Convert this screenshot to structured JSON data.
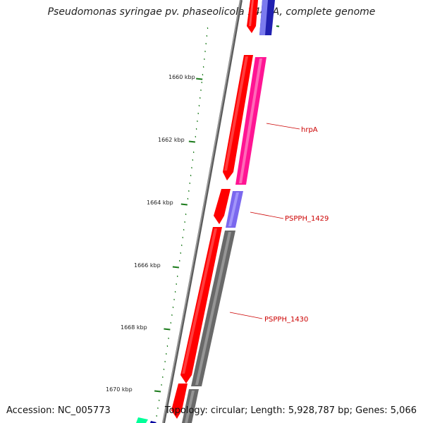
{
  "title": "Pseudomonas syringae pv. phaseolicola 1448A, complete genome",
  "footer": {
    "accession": "Accession: NC_005773",
    "summary": "Topology: circular; Length: 5,928,787 bp; Genes: 5,066"
  },
  "colors": {
    "backbone": "#7a7a7a",
    "tick": "#1a7a1a",
    "forward_gene": "#ff0000",
    "hrpA": "#ff1493",
    "PSPPH_1429": "#7b68ee",
    "PSPPH_1430": "#696969",
    "top_blue": "#0000a0",
    "bottom_teal": "#00ff99",
    "label": "#cc0000"
  },
  "chart_data": {
    "type": "linear-genome-map",
    "ticks": [
      {
        "kbp": 1660,
        "label": "1660 kbp"
      },
      {
        "kbp": 1662,
        "label": "1662 kbp"
      },
      {
        "kbp": 1664,
        "label": "1664 kbp"
      },
      {
        "kbp": 1666,
        "label": "1666 kbp"
      },
      {
        "kbp": 1668,
        "label": "1668 kbp"
      },
      {
        "kbp": 1670,
        "label": "1670 kbp"
      }
    ],
    "labels": [
      {
        "name": "hrpA",
        "text": "hrpA"
      },
      {
        "name": "PSPPH_1429",
        "text": "PSPPH_1429"
      },
      {
        "name": "PSPPH_1430",
        "text": "PSPPH_1430"
      }
    ]
  }
}
